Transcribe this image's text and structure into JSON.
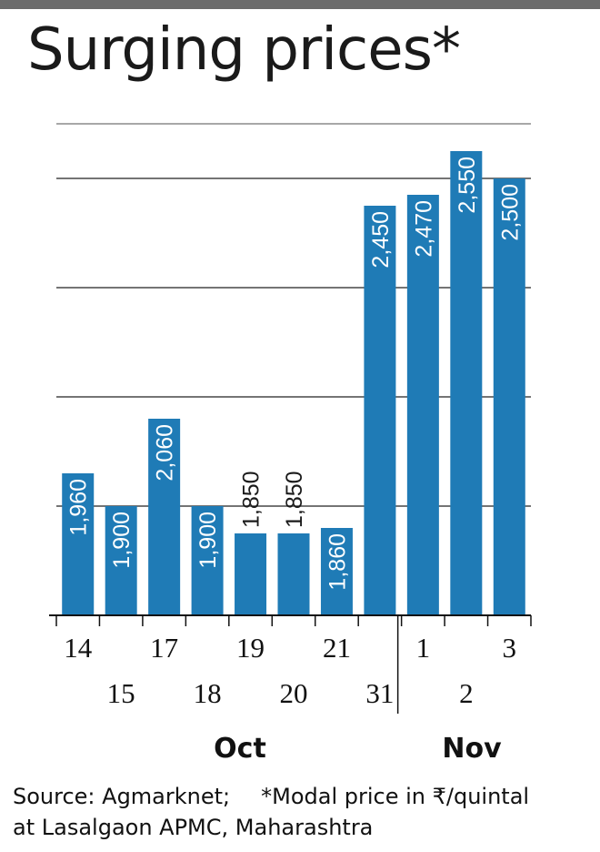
{
  "title": "Surging prices*",
  "chart_data": {
    "type": "bar",
    "title": "Surging prices*",
    "categories": [
      "14",
      "15",
      "17",
      "18",
      "19",
      "20",
      "21",
      "31",
      "1",
      "2",
      "3"
    ],
    "groups": [
      {
        "label": "Oct",
        "categories": [
          "14",
          "15",
          "17",
          "18",
          "19",
          "20",
          "21",
          "31"
        ]
      },
      {
        "label": "Nov",
        "categories": [
          "1",
          "2",
          "3"
        ]
      }
    ],
    "values": [
      1960,
      1900,
      2060,
      1900,
      1850,
      1850,
      1860,
      2450,
      2470,
      2550,
      2500
    ],
    "value_labels": [
      "1,960",
      "1,900",
      "2,060",
      "1,900",
      "1,850",
      "1,850",
      "1,860",
      "2,450",
      "2,470",
      "2,550",
      "2,500"
    ],
    "ylim": [
      1700,
      2600
    ],
    "gridlines": [
      1900,
      2100,
      2300,
      2500
    ],
    "grid": true,
    "bar_color": "#1f7bb6",
    "xlabel": "",
    "ylabel": ""
  },
  "source": {
    "line1a": "Source: Agmarknet;",
    "line1b": "*Modal price in ₹/quintal",
    "line2": "at Lasalgaon APMC, Maharashtra"
  }
}
